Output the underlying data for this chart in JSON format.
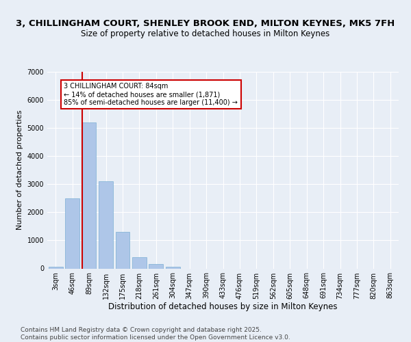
{
  "title_line1": "3, CHILLINGHAM COURT, SHENLEY BROOK END, MILTON KEYNES, MK5 7FH",
  "title_line2": "Size of property relative to detached houses in Milton Keynes",
  "xlabel": "Distribution of detached houses by size in Milton Keynes",
  "ylabel": "Number of detached properties",
  "categories": [
    "3sqm",
    "46sqm",
    "89sqm",
    "132sqm",
    "175sqm",
    "218sqm",
    "261sqm",
    "304sqm",
    "347sqm",
    "390sqm",
    "433sqm",
    "476sqm",
    "519sqm",
    "562sqm",
    "605sqm",
    "648sqm",
    "691sqm",
    "734sqm",
    "777sqm",
    "820sqm",
    "863sqm"
  ],
  "values": [
    50,
    2500,
    5200,
    3100,
    1300,
    400,
    150,
    60,
    0,
    0,
    0,
    0,
    0,
    0,
    0,
    0,
    0,
    0,
    0,
    0,
    0
  ],
  "bar_color": "#aec6e8",
  "bar_edge_color": "#7aafd4",
  "highlighted_bar_index": 2,
  "highlight_line_color": "#cc0000",
  "annotation_text": "3 CHILLINGHAM COURT: 84sqm\n← 14% of detached houses are smaller (1,871)\n85% of semi-detached houses are larger (11,400) →",
  "annotation_box_color": "#ffffff",
  "annotation_box_edge_color": "#cc0000",
  "ylim": [
    0,
    7000
  ],
  "yticks": [
    0,
    1000,
    2000,
    3000,
    4000,
    5000,
    6000,
    7000
  ],
  "bg_color": "#e8eef6",
  "plot_bg_color": "#e8eef6",
  "grid_color": "#ffffff",
  "footer_text": "Contains HM Land Registry data © Crown copyright and database right 2025.\nContains public sector information licensed under the Open Government Licence v3.0.",
  "title_fontsize": 9.5,
  "subtitle_fontsize": 8.5,
  "tick_fontsize": 7,
  "ylabel_fontsize": 8,
  "xlabel_fontsize": 8.5,
  "footer_fontsize": 6.5
}
